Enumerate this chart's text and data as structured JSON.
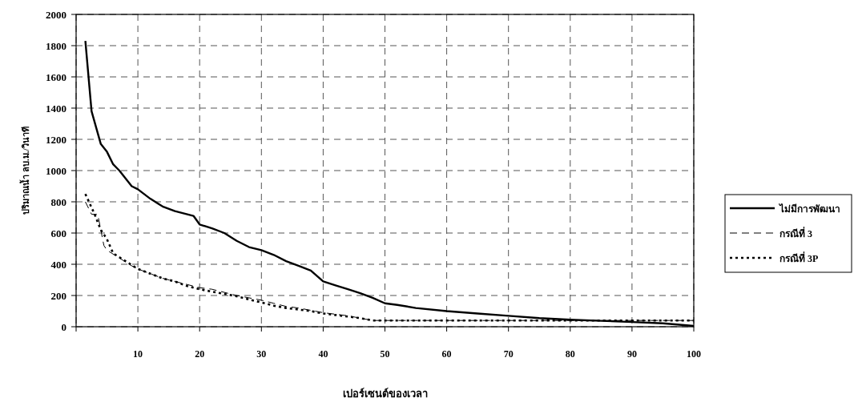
{
  "chart_data": {
    "type": "line",
    "xlabel": "เปอร์เซนต์ของเวลา",
    "ylabel": "ปริมาณน้ำ ลบ.ม./วินาที",
    "xlim": [
      0,
      100
    ],
    "ylim": [
      0,
      2000
    ],
    "xticks": [
      {
        "value": 0,
        "label": null
      },
      10,
      20,
      30,
      40,
      50,
      60,
      70,
      80,
      90,
      100
    ],
    "yticks": [
      0,
      200,
      400,
      600,
      800,
      1000,
      1200,
      1400,
      1600,
      1800,
      2000
    ],
    "grid": true,
    "legend": "right",
    "series": [
      {
        "name": "ไม่มีการพัฒนา",
        "color": "#000000",
        "line_style": "solid",
        "x": [
          1.5,
          2.5,
          4,
          5,
          6,
          7,
          8,
          9,
          10,
          12,
          14,
          16,
          18,
          19,
          20,
          22,
          24,
          26,
          28,
          30,
          32,
          34,
          36,
          38,
          40,
          42,
          44,
          46,
          48,
          50,
          52,
          55,
          60,
          65,
          70,
          75,
          80,
          85,
          90,
          95,
          100
        ],
        "values": [
          1830,
          1380,
          1170,
          1120,
          1040,
          1000,
          950,
          900,
          880,
          820,
          770,
          740,
          720,
          710,
          655,
          630,
          600,
          550,
          510,
          490,
          460,
          420,
          390,
          360,
          290,
          265,
          240,
          215,
          185,
          150,
          140,
          120,
          100,
          85,
          70,
          55,
          45,
          38,
          30,
          22,
          5
        ]
      },
      {
        "name": "กรณีที่ 3",
        "color": "#000000",
        "line_style": "dashed",
        "x": [
          1.5,
          2.5,
          3.5,
          4.5,
          5,
          7,
          9,
          10,
          12,
          14,
          16,
          18,
          20,
          22,
          24,
          26,
          28,
          30,
          32,
          34,
          36,
          38,
          40,
          42,
          44,
          46,
          48,
          50,
          100
        ],
        "values": [
          800,
          720,
          720,
          520,
          490,
          440,
          390,
          370,
          340,
          310,
          290,
          270,
          250,
          240,
          220,
          200,
          185,
          170,
          150,
          130,
          120,
          105,
          90,
          80,
          70,
          55,
          40,
          40,
          40
        ]
      },
      {
        "name": "กรณีที่ 3P",
        "color": "#000000",
        "line_style": "dotted",
        "x": [
          1.5,
          3,
          4,
          5,
          6,
          8,
          10,
          12,
          14,
          16,
          18,
          20,
          22,
          24,
          26,
          28,
          30,
          32,
          34,
          36,
          38,
          40,
          42,
          44,
          46,
          48,
          100
        ],
        "values": [
          850,
          720,
          620,
          560,
          470,
          420,
          370,
          340,
          310,
          290,
          260,
          240,
          225,
          210,
          195,
          175,
          155,
          135,
          120,
          110,
          100,
          85,
          75,
          65,
          55,
          40,
          40
        ]
      }
    ]
  }
}
